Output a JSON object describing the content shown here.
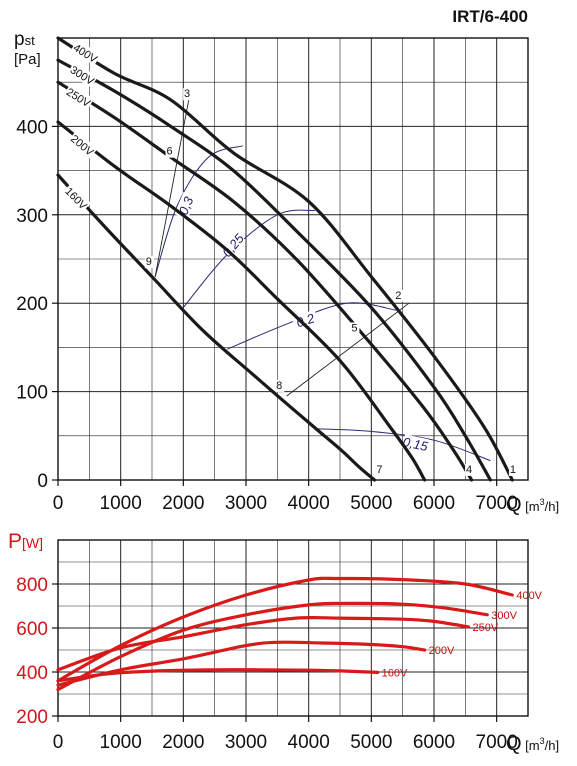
{
  "title": "IRT/6-400",
  "chart_data": [
    {
      "type": "line",
      "ylabel_main": "p",
      "ylabel_sub": "st",
      "ylabel_unit": "[Pa]",
      "xlabel": "Q",
      "xlabel_unit_pre": "[m",
      "xlabel_unit_exp": "3",
      "xlabel_unit_post": "/h]",
      "xlim": [
        0,
        7500
      ],
      "ylim": [
        0,
        500
      ],
      "xticks": [
        0,
        1000,
        2000,
        3000,
        4000,
        5000,
        6000,
        7000
      ],
      "yticks": [
        0,
        100,
        200,
        300,
        400
      ],
      "grid": true,
      "series": [
        {
          "name": "400V",
          "x": [
            0,
            900,
            1800,
            2800,
            4000,
            5000,
            6000,
            6800,
            7250
          ],
          "y": [
            500,
            460,
            430,
            370,
            315,
            230,
            140,
            60,
            0
          ]
        },
        {
          "name": "300V",
          "x": [
            0,
            900,
            1800,
            2800,
            3900,
            5000,
            6000,
            6500,
            6900
          ],
          "y": [
            475,
            440,
            400,
            350,
            275,
            195,
            105,
            50,
            0
          ]
        },
        {
          "name": "250V",
          "x": [
            0,
            900,
            1800,
            2800,
            3800,
            4800,
            5800,
            6300,
            6600
          ],
          "y": [
            450,
            410,
            365,
            315,
            250,
            170,
            85,
            35,
            0
          ]
        },
        {
          "name": "200V",
          "x": [
            0,
            900,
            1800,
            2700,
            3500,
            4500,
            5300,
            5650,
            5850
          ],
          "y": [
            405,
            355,
            310,
            260,
            205,
            135,
            60,
            25,
            0
          ]
        },
        {
          "name": "160V",
          "x": [
            0,
            700,
            1500,
            2300,
            3100,
            4000,
            4500,
            4800,
            5050
          ],
          "y": [
            345,
            290,
            230,
            170,
            120,
            65,
            35,
            15,
            0
          ]
        }
      ],
      "curve_labels": [
        {
          "text": "400V",
          "x": 430,
          "y": 482,
          "angle": 32
        },
        {
          "text": "300V",
          "x": 380,
          "y": 457,
          "angle": 32
        },
        {
          "text": "250V",
          "x": 320,
          "y": 432,
          "angle": 32
        },
        {
          "text": "200V",
          "x": 380,
          "y": 378,
          "angle": 40
        },
        {
          "text": "160V",
          "x": 280,
          "y": 318,
          "angle": 46
        }
      ],
      "efficiency_curves": [
        {
          "label": "0,3",
          "x": [
            1550,
            1900,
            2400,
            2950
          ],
          "y": [
            230,
            310,
            365,
            378
          ],
          "label_x": 2050,
          "label_y": 310,
          "label_angle": -68
        },
        {
          "label": "0,25",
          "x": [
            2000,
            2700,
            3500,
            4100
          ],
          "y": [
            195,
            255,
            300,
            305
          ],
          "label_x": 2800,
          "label_y": 265,
          "label_angle": -50
        },
        {
          "label": "0,2",
          "x": [
            2700,
            3600,
            4600,
            5400
          ],
          "y": [
            148,
            175,
            200,
            192
          ],
          "label_x": 3950,
          "label_y": 180,
          "label_angle": -18
        },
        {
          "label": "0,15",
          "x": [
            4100,
            5000,
            6000,
            6900
          ],
          "y": [
            58,
            55,
            45,
            22
          ],
          "label_x": 5700,
          "label_y": 40,
          "label_angle": 12
        }
      ],
      "system_lines": [
        {
          "x": [
            1550,
            2100
          ],
          "y": [
            230,
            435
          ]
        },
        {
          "x": [
            3650,
            5600
          ],
          "y": [
            95,
            200
          ]
        }
      ],
      "points": [
        {
          "label": "1",
          "x": 7260,
          "y": 8
        },
        {
          "label": "2",
          "x": 5430,
          "y": 205
        },
        {
          "label": "3",
          "x": 2060,
          "y": 433
        },
        {
          "label": "4",
          "x": 6560,
          "y": 8
        },
        {
          "label": "5",
          "x": 4730,
          "y": 168
        },
        {
          "label": "6",
          "x": 1780,
          "y": 368
        },
        {
          "label": "7",
          "x": 5130,
          "y": 8
        },
        {
          "label": "8",
          "x": 3530,
          "y": 103
        },
        {
          "label": "9",
          "x": 1450,
          "y": 243
        }
      ]
    },
    {
      "type": "line",
      "ylabel": "P",
      "ylabel_unit": "[W]",
      "xlabel": "Q",
      "xlabel_unit_pre": "[m",
      "xlabel_unit_exp": "3",
      "xlabel_unit_post": "/h]",
      "xlim": [
        0,
        7500
      ],
      "ylim": [
        200,
        1000
      ],
      "xticks": [
        0,
        1000,
        2000,
        3000,
        4000,
        5000,
        6000,
        7000
      ],
      "yticks": [
        200,
        400,
        600,
        800
      ],
      "grid": true,
      "color": "#d81a1a",
      "series": [
        {
          "name": "400V",
          "x": [
            0,
            1000,
            2000,
            3000,
            4000,
            4500,
            5500,
            6500,
            7250
          ],
          "y": [
            360,
            520,
            650,
            750,
            818,
            825,
            820,
            800,
            750
          ]
        },
        {
          "name": "300V",
          "x": [
            0,
            1000,
            2000,
            3000,
            4000,
            4600,
            5500,
            6200,
            6850
          ],
          "y": [
            320,
            470,
            590,
            660,
            705,
            712,
            708,
            690,
            660
          ]
        },
        {
          "name": "250V",
          "x": [
            0,
            1000,
            2000,
            3000,
            3800,
            4500,
            5500,
            6000,
            6550
          ],
          "y": [
            410,
            510,
            560,
            615,
            645,
            645,
            640,
            630,
            605
          ]
        },
        {
          "name": "200V",
          "x": [
            0,
            1000,
            2000,
            3000,
            3500,
            4200,
            5000,
            5500,
            5850
          ],
          "y": [
            340,
            410,
            460,
            520,
            535,
            532,
            525,
            515,
            500
          ]
        },
        {
          "name": "160V",
          "x": [
            0,
            800,
            1600,
            2500,
            3200,
            4000,
            4500,
            5100
          ],
          "y": [
            360,
            392,
            405,
            410,
            410,
            408,
            405,
            398
          ]
        }
      ],
      "end_labels": [
        "400V",
        "300V",
        "250V",
        "200V",
        "160V"
      ]
    }
  ]
}
